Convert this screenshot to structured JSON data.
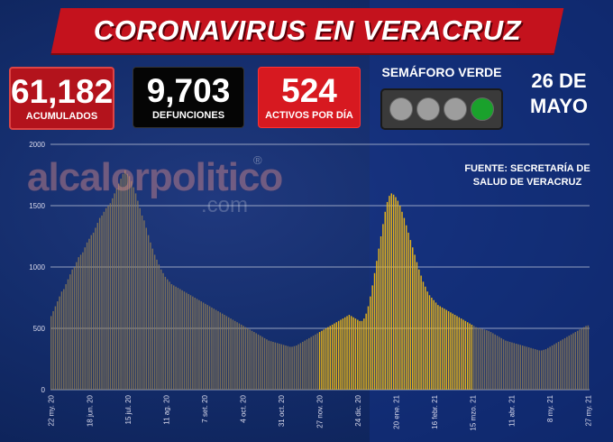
{
  "header": {
    "title": "CORONAVIRUS EN VERACRUZ"
  },
  "stats": {
    "acumulados": {
      "value": "61,182",
      "label": "ACUMULADOS"
    },
    "defunciones": {
      "value": "9,703",
      "label": "DEFUNCIONES"
    },
    "activos": {
      "value": "524",
      "label": "ACTIVOS POR DÍA"
    }
  },
  "semaforo": {
    "title": "SEMÁFORO VERDE",
    "active_light": 4,
    "active_color": "#1aa12c",
    "off_color": "#9d9d9d"
  },
  "date": {
    "line1": "26 DE",
    "line2": "MAYO"
  },
  "watermark": {
    "main": "alcalorpolitico",
    "domain": ".com",
    "mark": "®"
  },
  "source": {
    "line1": "FUENTE: SECRETARÍA DE",
    "line2": "SALUD DE VERACRUZ"
  },
  "colors": {
    "bar_normal": "#8c7a55",
    "bar_highlight": "#f0b915",
    "banner": "#c4121d"
  },
  "chart_data": {
    "type": "bar",
    "title": "",
    "xlabel": "",
    "ylabel": "",
    "ylim": [
      0,
      2000
    ],
    "yticks": [
      0,
      500,
      1000,
      1500,
      2000
    ],
    "x_tick_labels": [
      "22 my. 20",
      "18 jun. 20",
      "15 jul. 20",
      "11 ag. 20",
      "7 set. 20",
      "4 oct. 20",
      "31 oct. 20",
      "27 nov. 20",
      "24 dic. 20",
      "20 ene. 21",
      "16 febr. 21",
      "15 mzo. 21",
      "11 abr. 21",
      "8 my. 21",
      "27 my. 21"
    ],
    "grid": true,
    "highlight_range": [
      "27 nov. 20",
      "15 mzo. 21"
    ],
    "series": [
      {
        "values": [
          600,
          640,
          680,
          720,
          760,
          800,
          820,
          860,
          900,
          940,
          980,
          1000,
          1040,
          1080,
          1100,
          1120,
          1160,
          1200,
          1230,
          1260,
          1280,
          1320,
          1360,
          1400,
          1420,
          1450,
          1480,
          1500,
          1520,
          1560,
          1600,
          1640,
          1680,
          1720,
          1760,
          1790,
          1760,
          1740,
          1700,
          1650,
          1600,
          1540,
          1480,
          1420,
          1380,
          1320,
          1260,
          1200,
          1150,
          1100,
          1060,
          1020,
          980,
          950,
          920,
          900,
          880,
          860,
          850,
          840,
          830,
          820,
          810,
          800,
          790,
          780,
          770,
          760,
          750,
          740,
          730,
          720,
          710,
          700,
          690,
          680,
          670,
          660,
          650,
          640,
          630,
          620,
          610,
          600,
          590,
          580,
          570,
          560,
          550,
          540,
          530,
          520,
          510,
          500,
          490,
          480,
          470,
          460,
          450,
          440,
          430,
          420,
          410,
          400,
          395,
          390,
          385,
          380,
          375,
          370,
          365,
          360,
          355,
          350,
          350,
          355,
          360,
          370,
          380,
          390,
          400,
          410,
          420,
          430,
          440,
          450,
          460,
          470,
          480,
          490,
          500,
          510,
          520,
          530,
          540,
          550,
          560,
          570,
          580,
          590,
          600,
          610,
          600,
          590,
          580,
          570,
          560,
          560,
          580,
          620,
          680,
          760,
          850,
          950,
          1050,
          1150,
          1250,
          1350,
          1450,
          1530,
          1580,
          1600,
          1590,
          1570,
          1540,
          1500,
          1450,
          1400,
          1340,
          1280,
          1220,
          1160,
          1100,
          1040,
          980,
          930,
          880,
          840,
          800,
          770,
          750,
          730,
          710,
          690,
          680,
          670,
          660,
          650,
          640,
          630,
          620,
          610,
          600,
          590,
          580,
          570,
          560,
          550,
          540,
          530,
          520,
          510,
          505,
          500,
          495,
          490,
          485,
          480,
          470,
          460,
          450,
          440,
          430,
          420,
          410,
          400,
          395,
          390,
          385,
          380,
          375,
          370,
          365,
          360,
          355,
          350,
          345,
          340,
          335,
          330,
          325,
          320,
          320,
          325,
          330,
          340,
          350,
          360,
          370,
          380,
          390,
          400,
          410,
          420,
          430,
          440,
          450,
          460,
          470,
          480,
          490,
          500,
          510,
          520,
          524
        ]
      }
    ]
  }
}
